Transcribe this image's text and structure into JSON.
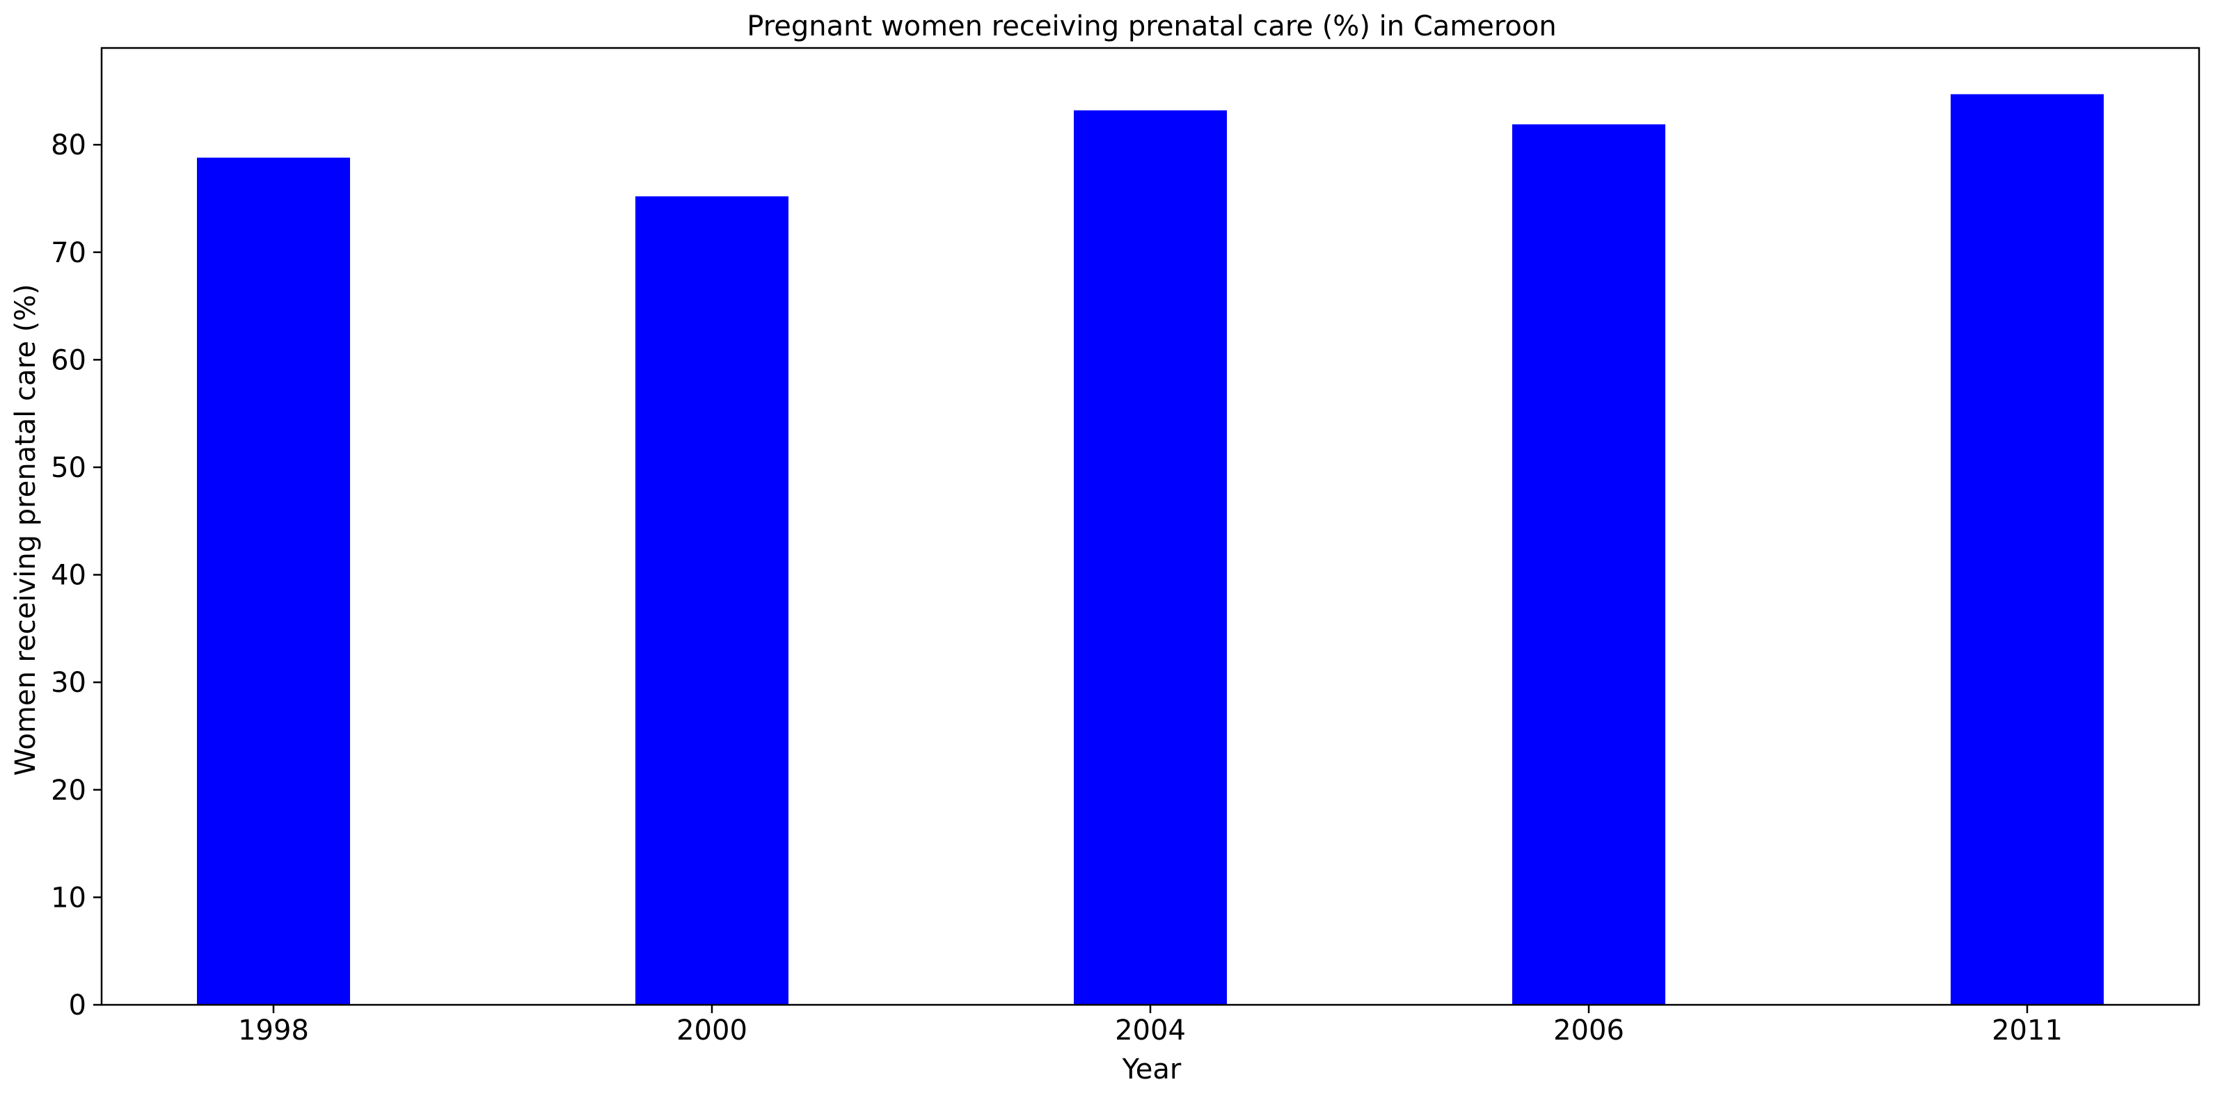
{
  "chart_data": {
    "type": "bar",
    "title": "Pregnant women receiving prenatal care (%) in Cameroon",
    "xlabel": "Year",
    "ylabel": "Women receiving prenatal care (%)",
    "categories": [
      "1998",
      "2000",
      "2004",
      "2006",
      "2011"
    ],
    "values": [
      78.8,
      75.2,
      83.2,
      81.9,
      84.7
    ],
    "ylim": [
      0,
      89
    ],
    "yticks": [
      0,
      10,
      20,
      30,
      40,
      50,
      60,
      70,
      80
    ],
    "bar_color": "#0000ff",
    "grid": false,
    "legend": "none"
  }
}
